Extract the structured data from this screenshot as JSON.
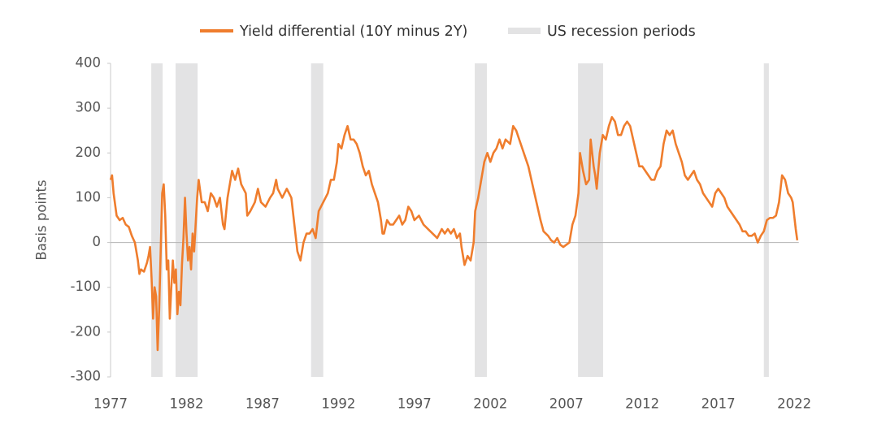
{
  "chart_data": {
    "type": "line",
    "y_label": "Basis points",
    "xlim": [
      1977,
      2022.3
    ],
    "xticks": [
      1977,
      1982,
      1987,
      1992,
      1997,
      2002,
      2007,
      2012,
      2017,
      2022
    ],
    "ylim": [
      -300,
      400
    ],
    "yticks": [
      -300,
      -200,
      -100,
      0,
      100,
      200,
      300,
      400
    ],
    "recessions": {
      "name": "US recession periods",
      "color": "#e3e3e4",
      "periods": [
        [
          1979.68,
          1980.43
        ],
        [
          1981.28,
          1982.73
        ],
        [
          1990.2,
          1991.0
        ],
        [
          2000.97,
          2001.77
        ],
        [
          2007.77,
          2009.42
        ],
        [
          2020.0,
          2020.33
        ]
      ]
    },
    "x": [
      1977.0,
      1977.1,
      1977.2,
      1977.4,
      1977.6,
      1977.8,
      1978.0,
      1978.2,
      1978.4,
      1978.6,
      1978.8,
      1978.9,
      1979.0,
      1979.2,
      1979.4,
      1979.5,
      1979.6,
      1979.7,
      1979.8,
      1979.9,
      1980.0,
      1980.1,
      1980.2,
      1980.3,
      1980.4,
      1980.5,
      1980.6,
      1980.7,
      1980.8,
      1980.9,
      1981.0,
      1981.1,
      1981.2,
      1981.3,
      1981.4,
      1981.5,
      1981.6,
      1981.7,
      1981.8,
      1981.9,
      1982.0,
      1982.1,
      1982.2,
      1982.3,
      1982.4,
      1982.5,
      1982.6,
      1982.7,
      1982.8,
      1983.0,
      1983.2,
      1983.4,
      1983.6,
      1983.8,
      1984.0,
      1984.2,
      1984.4,
      1984.5,
      1984.7,
      1985.0,
      1985.2,
      1985.4,
      1985.6,
      1985.9,
      1986.0,
      1986.2,
      1986.5,
      1986.7,
      1986.9,
      1987.2,
      1987.5,
      1987.7,
      1987.9,
      1988.0,
      1988.3,
      1988.6,
      1988.9,
      1989.1,
      1989.3,
      1989.5,
      1989.7,
      1989.9,
      1990.1,
      1990.3,
      1990.5,
      1990.7,
      1991.0,
      1991.3,
      1991.5,
      1991.7,
      1991.9,
      1992.0,
      1992.2,
      1992.4,
      1992.6,
      1992.8,
      1993.0,
      1993.2,
      1993.4,
      1993.6,
      1993.8,
      1994.0,
      1994.2,
      1994.4,
      1994.6,
      1994.8,
      1994.9,
      1995.0,
      1995.2,
      1995.4,
      1995.6,
      1995.8,
      1996.0,
      1996.2,
      1996.4,
      1996.6,
      1996.8,
      1997.0,
      1997.3,
      1997.6,
      1997.9,
      1998.2,
      1998.5,
      1998.8,
      1999.0,
      1999.2,
      1999.4,
      1999.6,
      1999.8,
      2000.0,
      2000.1,
      2000.3,
      2000.5,
      2000.7,
      2000.9,
      2001.0,
      2001.2,
      2001.4,
      2001.6,
      2001.8,
      2002.0,
      2002.2,
      2002.4,
      2002.6,
      2002.8,
      2003.0,
      2003.3,
      2003.5,
      2003.7,
      2003.9,
      2004.1,
      2004.3,
      2004.5,
      2004.7,
      2004.9,
      2005.1,
      2005.3,
      2005.5,
      2005.8,
      2006.0,
      2006.2,
      2006.4,
      2006.6,
      2006.8,
      2007.0,
      2007.2,
      2007.4,
      2007.6,
      2007.8,
      2007.9,
      2008.1,
      2008.3,
      2008.5,
      2008.6,
      2008.8,
      2008.9,
      2009.0,
      2009.2,
      2009.4,
      2009.6,
      2009.8,
      2010.0,
      2010.2,
      2010.4,
      2010.6,
      2010.8,
      2011.0,
      2011.2,
      2011.4,
      2011.6,
      2011.8,
      2012.0,
      2012.2,
      2012.4,
      2012.6,
      2012.8,
      2013.0,
      2013.2,
      2013.4,
      2013.6,
      2013.8,
      2014.0,
      2014.2,
      2014.4,
      2014.6,
      2014.8,
      2015.0,
      2015.2,
      2015.4,
      2015.6,
      2015.8,
      2016.0,
      2016.2,
      2016.4,
      2016.6,
      2016.8,
      2017.0,
      2017.2,
      2017.4,
      2017.6,
      2017.8,
      2018.0,
      2018.2,
      2018.4,
      2018.6,
      2018.8,
      2019.0,
      2019.2,
      2019.4,
      2019.6,
      2019.8,
      2020.0,
      2020.2,
      2020.4,
      2020.6,
      2020.8,
      2021.0,
      2021.2,
      2021.4,
      2021.6,
      2021.8,
      2021.9,
      2022.0,
      2022.1,
      2022.2
    ],
    "series": [
      {
        "name": "Yield differential (10Y minus 2Y)",
        "color": "#ef7d2d",
        "values": [
          140,
          150,
          110,
          60,
          50,
          55,
          40,
          35,
          15,
          0,
          -40,
          -70,
          -60,
          -65,
          -45,
          -30,
          -10,
          -80,
          -170,
          -100,
          -120,
          -240,
          -150,
          -20,
          110,
          130,
          60,
          -60,
          -40,
          -170,
          -100,
          -40,
          -90,
          -60,
          -160,
          -110,
          -140,
          -50,
          10,
          100,
          20,
          -40,
          -10,
          -60,
          20,
          -20,
          40,
          100,
          140,
          90,
          90,
          70,
          110,
          100,
          80,
          100,
          40,
          30,
          100,
          160,
          140,
          165,
          130,
          110,
          60,
          70,
          90,
          120,
          90,
          80,
          100,
          110,
          140,
          120,
          100,
          120,
          100,
          40,
          -20,
          -40,
          0,
          20,
          20,
          30,
          10,
          70,
          90,
          110,
          140,
          140,
          180,
          220,
          210,
          240,
          260,
          230,
          230,
          220,
          200,
          170,
          150,
          160,
          130,
          110,
          90,
          50,
          20,
          20,
          50,
          40,
          40,
          50,
          60,
          40,
          50,
          80,
          70,
          50,
          60,
          40,
          30,
          20,
          10,
          30,
          20,
          30,
          20,
          30,
          10,
          20,
          -10,
          -50,
          -30,
          -40,
          0,
          70,
          100,
          140,
          180,
          200,
          180,
          200,
          210,
          230,
          210,
          230,
          220,
          260,
          250,
          230,
          210,
          190,
          170,
          140,
          110,
          80,
          50,
          25,
          15,
          5,
          0,
          10,
          -5,
          -10,
          -5,
          0,
          40,
          60,
          110,
          200,
          160,
          130,
          140,
          230,
          170,
          150,
          120,
          200,
          240,
          230,
          260,
          280,
          270,
          240,
          240,
          260,
          270,
          260,
          230,
          200,
          170,
          170,
          160,
          150,
          140,
          140,
          160,
          170,
          220,
          250,
          240,
          250,
          220,
          200,
          180,
          150,
          140,
          150,
          160,
          140,
          130,
          110,
          100,
          90,
          80,
          110,
          120,
          110,
          100,
          80,
          70,
          60,
          50,
          40,
          25,
          25,
          15,
          15,
          20,
          0,
          15,
          25,
          50,
          55,
          55,
          60,
          90,
          150,
          140,
          110,
          100,
          90,
          60,
          30,
          5
        ]
      }
    ]
  }
}
